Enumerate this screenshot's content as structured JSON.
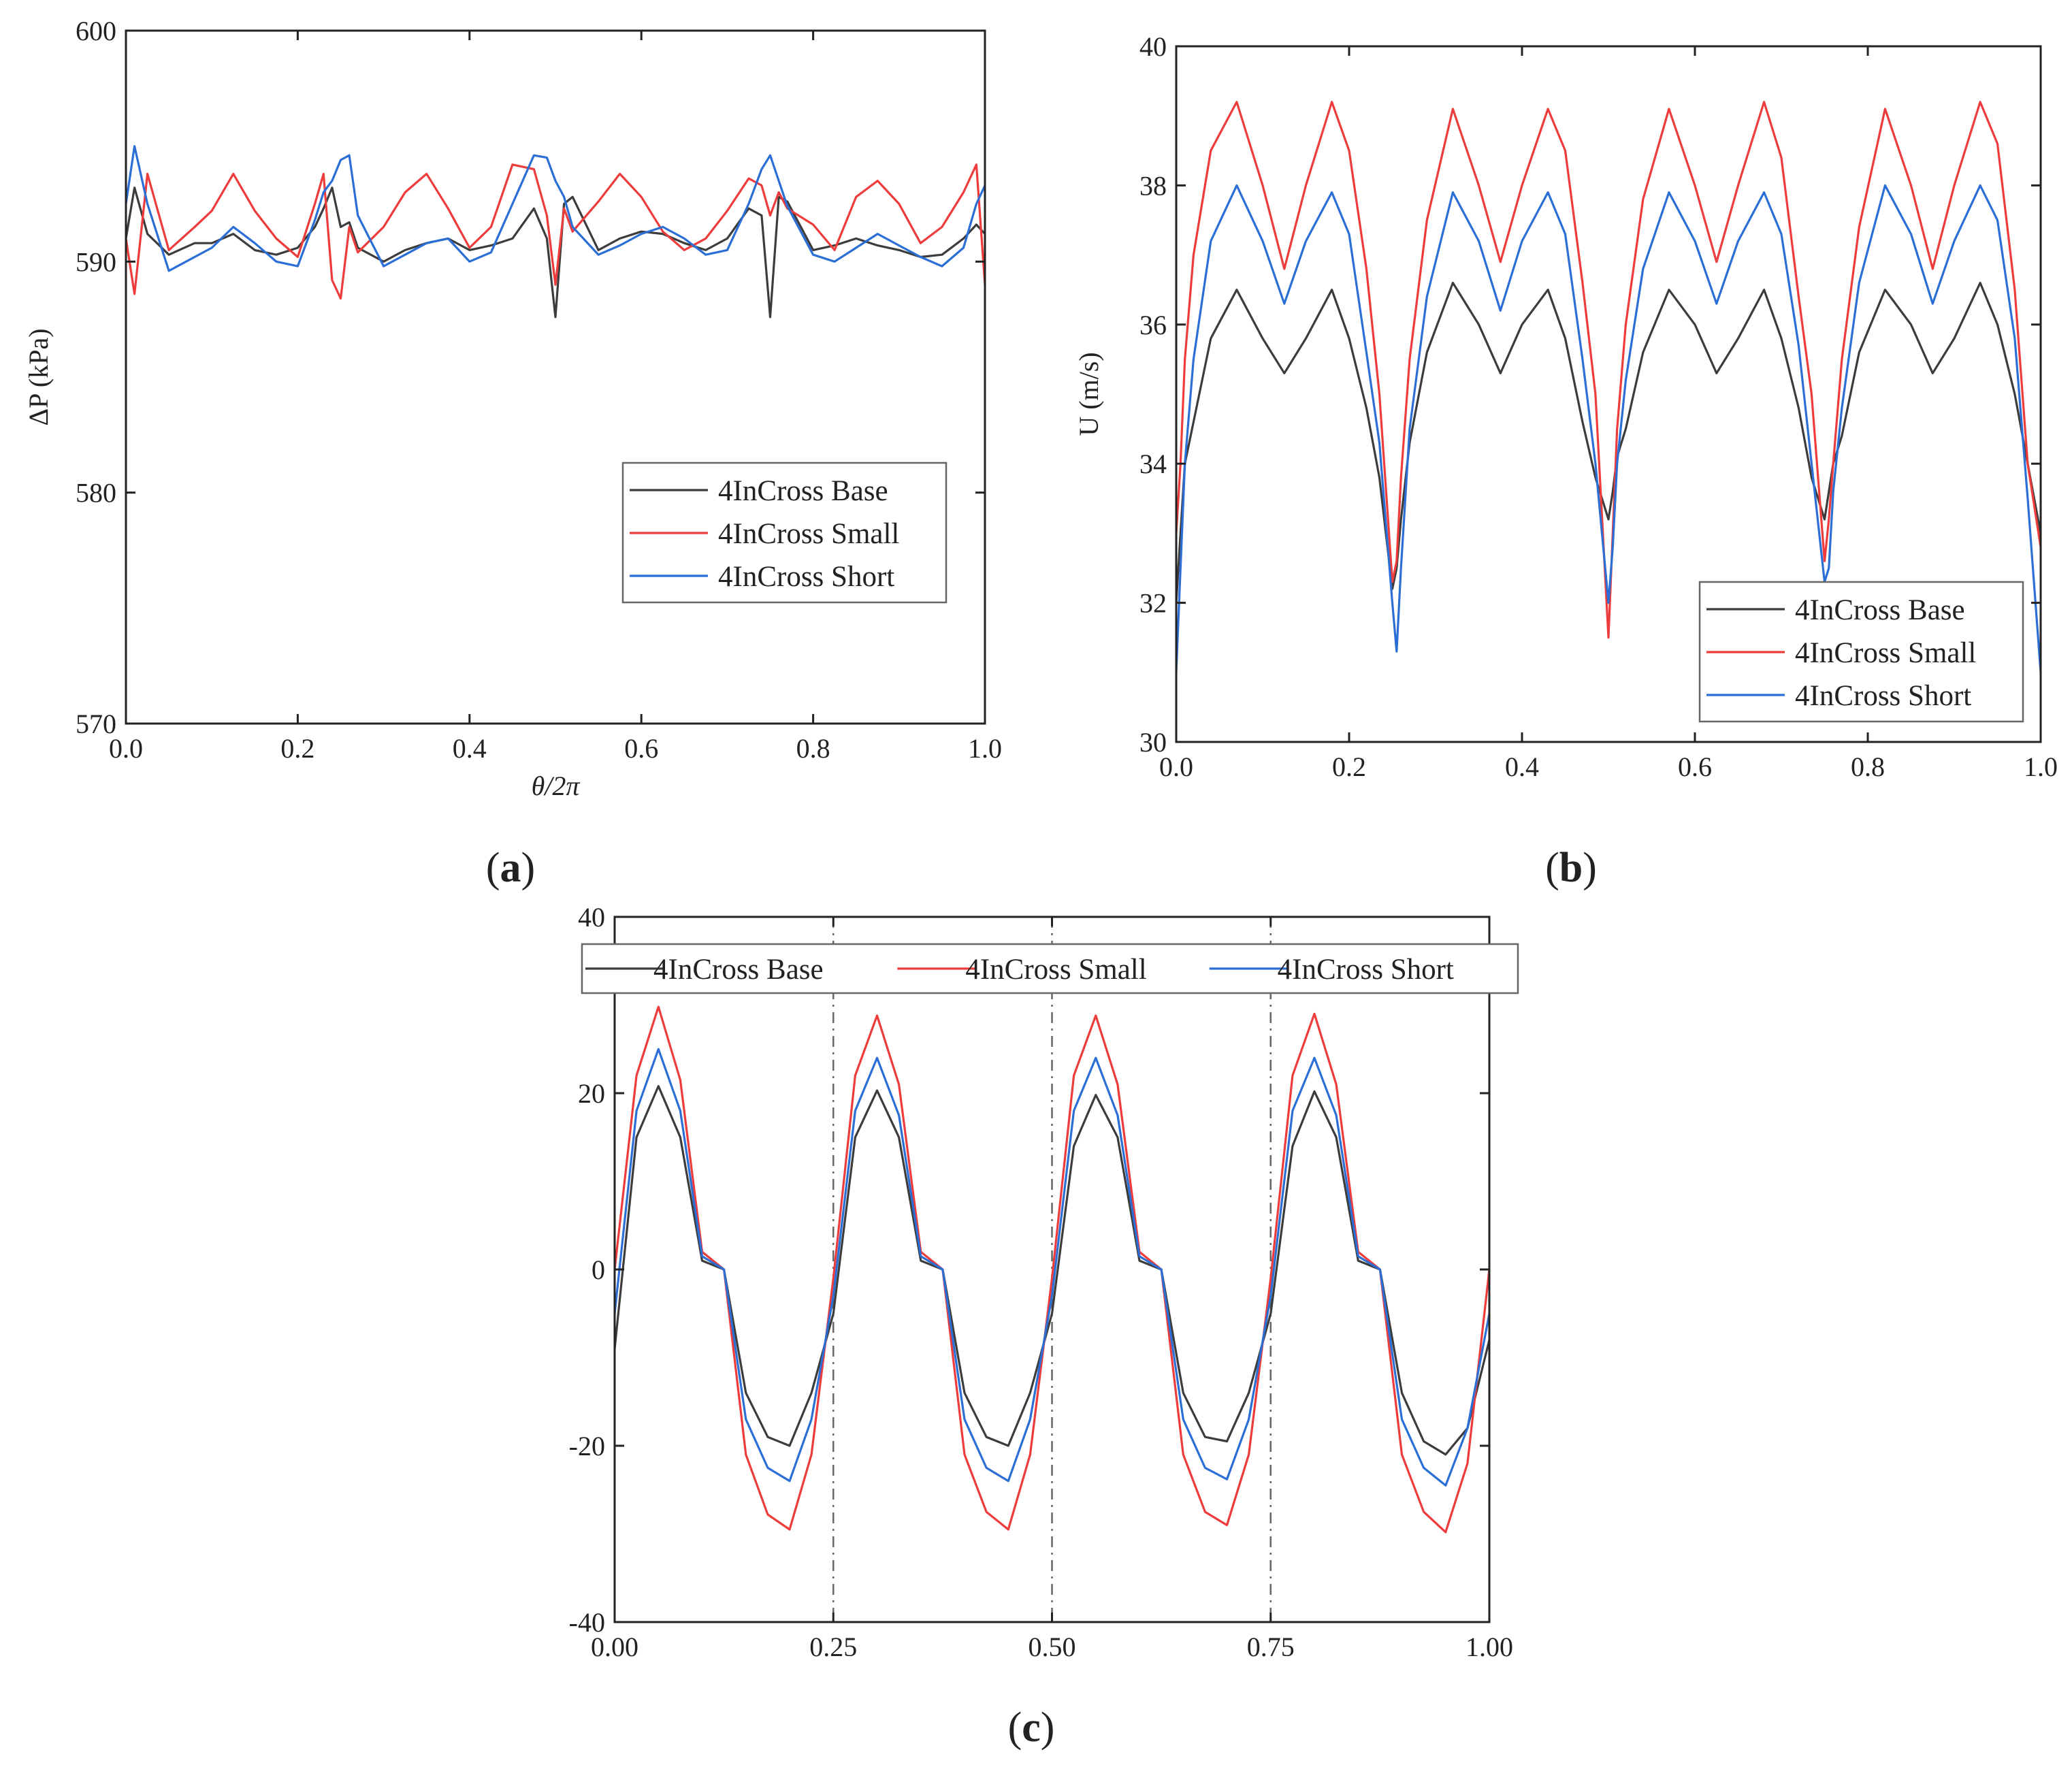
{
  "colors": {
    "base": "#3c3c3c",
    "small": "#ee3b3b",
    "short": "#2b6fd6"
  },
  "chart_data": [
    {
      "id": "a",
      "type": "line",
      "panel_label": "a",
      "xlabel": "θ/2π",
      "ylabel": "ΔP (kPa)",
      "xlim": [
        0.0,
        1.0
      ],
      "ylim": [
        570,
        600
      ],
      "x_ticks": [
        0.0,
        0.2,
        0.4,
        0.6,
        0.8,
        1.0
      ],
      "x_tick_labels": [
        "0.0",
        "0.2",
        "0.4",
        "0.6",
        "0.8",
        "1.0"
      ],
      "y_ticks": [
        570,
        580,
        590,
        600
      ],
      "y_tick_labels": [
        "570",
        "580",
        "590",
        "600"
      ],
      "legend_position": "center-right",
      "legend_layout": "vertical",
      "series": [
        {
          "name": "4InCross Base",
          "color": "#3c3c3c",
          "x": [
            0.0,
            0.01,
            0.025,
            0.05,
            0.08,
            0.1,
            0.125,
            0.15,
            0.175,
            0.2,
            0.22,
            0.23,
            0.24,
            0.25,
            0.26,
            0.27,
            0.3,
            0.325,
            0.35,
            0.375,
            0.4,
            0.425,
            0.45,
            0.475,
            0.49,
            0.5,
            0.51,
            0.52,
            0.55,
            0.575,
            0.6,
            0.625,
            0.65,
            0.675,
            0.7,
            0.725,
            0.74,
            0.75,
            0.76,
            0.77,
            0.8,
            0.825,
            0.85,
            0.875,
            0.9,
            0.925,
            0.95,
            0.975,
            0.99,
            1.0
          ],
          "values": [
            591,
            593.2,
            591.2,
            590.3,
            590.8,
            590.8,
            591.2,
            590.5,
            590.3,
            590.6,
            591.5,
            592.3,
            593.2,
            591.5,
            591.7,
            590.6,
            590.0,
            590.5,
            590.8,
            591.0,
            590.5,
            590.7,
            591.0,
            592.3,
            591.0,
            587.6,
            592.5,
            592.8,
            590.5,
            591.0,
            591.3,
            591.2,
            590.8,
            590.5,
            591.0,
            592.3,
            592.0,
            587.6,
            592.8,
            592.6,
            590.5,
            590.7,
            591.0,
            590.7,
            590.5,
            590.2,
            590.3,
            591.0,
            591.6,
            591.2
          ]
        },
        {
          "name": "4InCross Small",
          "color": "#ee3b3b",
          "x": [
            0.0,
            0.01,
            0.025,
            0.05,
            0.08,
            0.1,
            0.125,
            0.15,
            0.175,
            0.2,
            0.22,
            0.23,
            0.24,
            0.25,
            0.26,
            0.27,
            0.3,
            0.325,
            0.35,
            0.375,
            0.4,
            0.425,
            0.45,
            0.475,
            0.49,
            0.5,
            0.51,
            0.52,
            0.55,
            0.575,
            0.6,
            0.625,
            0.65,
            0.675,
            0.7,
            0.725,
            0.74,
            0.75,
            0.76,
            0.77,
            0.8,
            0.825,
            0.85,
            0.875,
            0.9,
            0.925,
            0.95,
            0.975,
            0.99,
            1.0
          ],
          "values": [
            591,
            588.6,
            593.8,
            590.5,
            591.5,
            592.2,
            593.8,
            592.2,
            591.0,
            590.2,
            592.5,
            593.8,
            589.2,
            588.4,
            591.5,
            590.4,
            591.5,
            593.0,
            593.8,
            592.3,
            590.6,
            591.5,
            594.2,
            594.0,
            592.0,
            589.0,
            592.3,
            591.3,
            592.6,
            593.8,
            592.8,
            591.3,
            590.5,
            591.0,
            592.2,
            593.6,
            593.3,
            592.0,
            593.0,
            592.3,
            591.6,
            590.5,
            592.8,
            593.5,
            592.5,
            590.8,
            591.5,
            593.0,
            594.2,
            589.0
          ]
        },
        {
          "name": "4InCross Short",
          "color": "#2b6fd6",
          "x": [
            0.0,
            0.01,
            0.025,
            0.05,
            0.08,
            0.1,
            0.125,
            0.15,
            0.175,
            0.2,
            0.22,
            0.23,
            0.24,
            0.25,
            0.26,
            0.27,
            0.3,
            0.325,
            0.35,
            0.375,
            0.4,
            0.425,
            0.45,
            0.475,
            0.49,
            0.5,
            0.51,
            0.52,
            0.55,
            0.575,
            0.6,
            0.625,
            0.65,
            0.675,
            0.7,
            0.725,
            0.74,
            0.75,
            0.76,
            0.77,
            0.8,
            0.825,
            0.85,
            0.875,
            0.9,
            0.925,
            0.95,
            0.975,
            0.99,
            1.0
          ],
          "values": [
            592.5,
            595.0,
            592.5,
            589.6,
            590.2,
            590.6,
            591.5,
            590.8,
            590.0,
            589.8,
            591.8,
            593.0,
            593.5,
            594.4,
            594.6,
            592.0,
            589.8,
            590.3,
            590.8,
            591.0,
            590.0,
            590.4,
            592.5,
            594.6,
            594.5,
            593.5,
            592.8,
            591.5,
            590.3,
            590.7,
            591.2,
            591.5,
            591.0,
            590.3,
            590.5,
            592.5,
            594.0,
            594.6,
            593.5,
            592.4,
            590.3,
            590.0,
            590.6,
            591.2,
            590.7,
            590.2,
            589.8,
            590.6,
            592.5,
            593.3
          ]
        }
      ]
    },
    {
      "id": "b",
      "type": "line",
      "panel_label": "b",
      "xlabel": "",
      "ylabel": "U (m/s)",
      "xlim": [
        0.0,
        1.0
      ],
      "ylim": [
        30,
        40
      ],
      "x_ticks": [
        0.0,
        0.2,
        0.4,
        0.6,
        0.8,
        1.0
      ],
      "x_tick_labels": [
        "0.0",
        "0.2",
        "0.4",
        "0.6",
        "0.8",
        "1.0"
      ],
      "y_ticks": [
        30,
        32,
        34,
        36,
        38,
        40
      ],
      "y_tick_labels": [
        "30",
        "32",
        "34",
        "36",
        "38",
        "40"
      ],
      "legend_position": "bottom-right",
      "legend_layout": "vertical",
      "series": [
        {
          "name": "4InCross Base",
          "color": "#3c3c3c",
          "x": [
            0.0,
            0.005,
            0.01,
            0.02,
            0.04,
            0.07,
            0.1,
            0.125,
            0.15,
            0.18,
            0.2,
            0.22,
            0.235,
            0.25,
            0.255,
            0.26,
            0.27,
            0.29,
            0.32,
            0.35,
            0.375,
            0.4,
            0.43,
            0.45,
            0.47,
            0.485,
            0.5,
            0.505,
            0.51,
            0.52,
            0.54,
            0.57,
            0.6,
            0.625,
            0.65,
            0.68,
            0.7,
            0.72,
            0.735,
            0.75,
            0.755,
            0.76,
            0.77,
            0.79,
            0.82,
            0.85,
            0.875,
            0.9,
            0.93,
            0.95,
            0.97,
            0.985,
            1.0
          ],
          "values": [
            32.0,
            33.0,
            34.0,
            34.6,
            35.8,
            36.5,
            35.8,
            35.3,
            35.8,
            36.5,
            35.8,
            34.8,
            33.8,
            32.2,
            32.5,
            33.2,
            34.3,
            35.6,
            36.6,
            36.0,
            35.3,
            36.0,
            36.5,
            35.8,
            34.6,
            33.8,
            33.2,
            33.6,
            34.1,
            34.5,
            35.6,
            36.5,
            36.0,
            35.3,
            35.8,
            36.5,
            35.8,
            34.8,
            33.8,
            33.2,
            33.6,
            34.0,
            34.4,
            35.6,
            36.5,
            36.0,
            35.3,
            35.8,
            36.6,
            36.0,
            35.0,
            34.0,
            33.0
          ]
        },
        {
          "name": "4InCross Small",
          "color": "#ee3b3b",
          "x": [
            0.0,
            0.005,
            0.01,
            0.02,
            0.04,
            0.07,
            0.1,
            0.125,
            0.15,
            0.18,
            0.2,
            0.22,
            0.235,
            0.25,
            0.255,
            0.26,
            0.27,
            0.29,
            0.32,
            0.35,
            0.375,
            0.4,
            0.43,
            0.45,
            0.47,
            0.485,
            0.5,
            0.505,
            0.51,
            0.52,
            0.54,
            0.57,
            0.6,
            0.625,
            0.65,
            0.68,
            0.7,
            0.72,
            0.735,
            0.75,
            0.755,
            0.76,
            0.77,
            0.79,
            0.82,
            0.85,
            0.875,
            0.9,
            0.93,
            0.95,
            0.97,
            0.985,
            1.0
          ],
          "values": [
            33.0,
            34.0,
            35.5,
            37.0,
            38.5,
            39.2,
            38.0,
            36.8,
            38.0,
            39.2,
            38.5,
            36.8,
            35.0,
            32.3,
            32.6,
            33.8,
            35.5,
            37.5,
            39.1,
            38.0,
            36.9,
            38.0,
            39.1,
            38.5,
            36.6,
            35.0,
            31.5,
            33.0,
            34.5,
            36.0,
            37.8,
            39.1,
            38.0,
            36.9,
            38.0,
            39.2,
            38.4,
            36.4,
            35.0,
            32.6,
            33.2,
            34.0,
            35.5,
            37.4,
            39.1,
            38.0,
            36.8,
            38.0,
            39.2,
            38.6,
            36.5,
            34.0,
            32.8
          ]
        },
        {
          "name": "4InCross Short",
          "color": "#2b6fd6",
          "x": [
            0.0,
            0.005,
            0.01,
            0.02,
            0.04,
            0.07,
            0.1,
            0.125,
            0.15,
            0.18,
            0.2,
            0.22,
            0.235,
            0.25,
            0.255,
            0.26,
            0.27,
            0.29,
            0.32,
            0.35,
            0.375,
            0.4,
            0.43,
            0.45,
            0.47,
            0.485,
            0.5,
            0.505,
            0.51,
            0.52,
            0.54,
            0.57,
            0.6,
            0.625,
            0.65,
            0.68,
            0.7,
            0.72,
            0.735,
            0.75,
            0.755,
            0.76,
            0.77,
            0.79,
            0.82,
            0.85,
            0.875,
            0.9,
            0.93,
            0.95,
            0.97,
            0.985,
            1.0
          ],
          "values": [
            31.0,
            32.5,
            34.0,
            35.5,
            37.2,
            38.0,
            37.2,
            36.3,
            37.2,
            37.9,
            37.3,
            35.6,
            34.3,
            32.0,
            31.3,
            32.5,
            34.5,
            36.4,
            37.9,
            37.2,
            36.2,
            37.2,
            37.9,
            37.3,
            35.5,
            34.0,
            32.0,
            32.8,
            34.0,
            35.2,
            36.8,
            37.9,
            37.2,
            36.3,
            37.2,
            37.9,
            37.3,
            35.7,
            34.0,
            32.3,
            32.5,
            33.6,
            34.8,
            36.6,
            38.0,
            37.3,
            36.3,
            37.2,
            38.0,
            37.5,
            35.8,
            33.5,
            31.0
          ]
        }
      ]
    },
    {
      "id": "c",
      "type": "line",
      "panel_label": "c",
      "xlabel": "",
      "ylabel": "",
      "xlim": [
        0.0,
        1.0
      ],
      "ylim": [
        -40,
        40
      ],
      "x_ticks": [
        0.0,
        0.25,
        0.5,
        0.75,
        1.0
      ],
      "x_tick_labels": [
        "0.00",
        "0.25",
        "0.50",
        "0.75",
        "1.00"
      ],
      "y_ticks": [
        -40,
        -20,
        0,
        20,
        40
      ],
      "y_tick_labels": [
        "-40",
        "-20",
        "0",
        "20",
        "40"
      ],
      "vertical_reference_lines": [
        0.25,
        0.5,
        0.75
      ],
      "legend_position": "top",
      "legend_layout": "horizontal",
      "series": [
        {
          "name": "4InCross Base",
          "color": "#3c3c3c",
          "x": [
            0.0,
            0.025,
            0.05,
            0.075,
            0.1,
            0.125,
            0.15,
            0.175,
            0.2,
            0.225,
            0.25,
            0.275,
            0.3,
            0.325,
            0.35,
            0.375,
            0.4,
            0.425,
            0.45,
            0.475,
            0.5,
            0.525,
            0.55,
            0.575,
            0.6,
            0.625,
            0.65,
            0.675,
            0.7,
            0.725,
            0.75,
            0.775,
            0.8,
            0.825,
            0.85,
            0.875,
            0.9,
            0.925,
            0.95,
            0.975,
            1.0
          ],
          "values": [
            -9.0,
            15.0,
            20.8,
            15.0,
            1.0,
            0.0,
            -14.0,
            -19.0,
            -20.0,
            -14.0,
            -5.0,
            15.0,
            20.3,
            15.0,
            1.0,
            0.0,
            -14.0,
            -19.0,
            -20.0,
            -14.0,
            -5.0,
            14.0,
            19.8,
            15.0,
            1.0,
            0.0,
            -14.0,
            -19.0,
            -19.5,
            -14.0,
            -5.0,
            14.0,
            20.2,
            15.0,
            1.0,
            0.0,
            -14.0,
            -19.5,
            -21.0,
            -18.0,
            -8.0
          ]
        },
        {
          "name": "4InCross Small",
          "color": "#ee3b3b",
          "x": [
            0.0,
            0.025,
            0.05,
            0.075,
            0.1,
            0.125,
            0.15,
            0.175,
            0.2,
            0.225,
            0.25,
            0.275,
            0.3,
            0.325,
            0.35,
            0.375,
            0.4,
            0.425,
            0.45,
            0.475,
            0.5,
            0.525,
            0.55,
            0.575,
            0.6,
            0.625,
            0.65,
            0.675,
            0.7,
            0.725,
            0.75,
            0.775,
            0.8,
            0.825,
            0.85,
            0.875,
            0.9,
            0.925,
            0.95,
            0.975,
            1.0
          ],
          "values": [
            0.0,
            22.0,
            29.8,
            21.5,
            2.0,
            0.0,
            -21.0,
            -27.8,
            -29.5,
            -21.0,
            -1.0,
            22.0,
            28.8,
            21.0,
            2.0,
            0.0,
            -21.0,
            -27.5,
            -29.5,
            -21.0,
            -1.0,
            22.0,
            28.8,
            21.0,
            2.0,
            0.0,
            -21.0,
            -27.5,
            -29.0,
            -21.0,
            -1.0,
            22.0,
            29.0,
            21.0,
            2.0,
            0.0,
            -21.0,
            -27.5,
            -29.8,
            -22.0,
            0.0
          ]
        },
        {
          "name": "4InCross Short",
          "color": "#2b6fd6",
          "x": [
            0.0,
            0.025,
            0.05,
            0.075,
            0.1,
            0.125,
            0.15,
            0.175,
            0.2,
            0.225,
            0.25,
            0.275,
            0.3,
            0.325,
            0.35,
            0.375,
            0.4,
            0.425,
            0.45,
            0.475,
            0.5,
            0.525,
            0.55,
            0.575,
            0.6,
            0.625,
            0.65,
            0.675,
            0.7,
            0.725,
            0.75,
            0.775,
            0.8,
            0.825,
            0.85,
            0.875,
            0.9,
            0.925,
            0.95,
            0.975,
            1.0
          ],
          "values": [
            -5.0,
            18.0,
            25.0,
            18.0,
            1.5,
            0.0,
            -17.0,
            -22.5,
            -24.0,
            -17.0,
            -3.0,
            18.0,
            24.0,
            17.5,
            1.5,
            0.0,
            -17.0,
            -22.5,
            -24.0,
            -17.0,
            -3.0,
            18.0,
            24.0,
            17.5,
            1.5,
            0.0,
            -17.0,
            -22.5,
            -23.8,
            -17.0,
            -3.0,
            18.0,
            24.0,
            17.5,
            1.5,
            0.0,
            -17.0,
            -22.5,
            -24.5,
            -18.0,
            -5.0
          ]
        }
      ]
    }
  ]
}
